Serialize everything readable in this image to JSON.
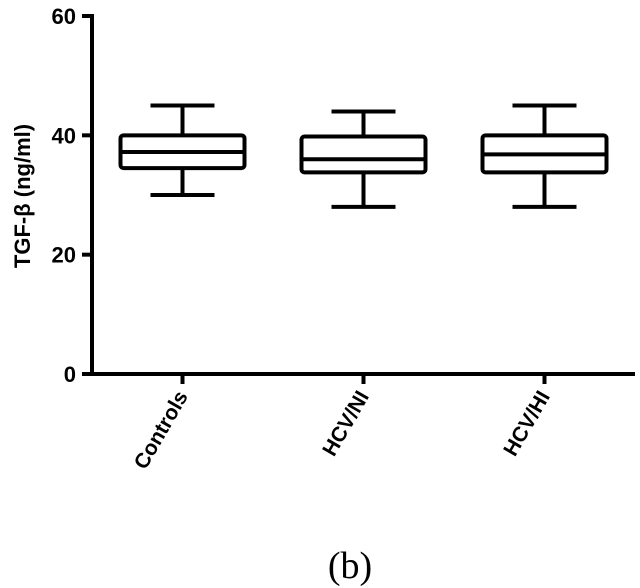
{
  "chart_data": {
    "type": "box",
    "title": "",
    "xlabel": "",
    "ylabel": "TGF-β (ng/ml)",
    "ylim": [
      0,
      60
    ],
    "yticks": [
      0,
      20,
      40,
      60
    ],
    "grid": false,
    "categories": [
      "Controls",
      "HCV/NI",
      "HCV/HI"
    ],
    "boxes": [
      {
        "category": "Controls",
        "min": 30,
        "q1": 34.5,
        "median": 37.2,
        "q3": 40,
        "max": 45
      },
      {
        "category": "HCV/NI",
        "min": 28,
        "q1": 33.8,
        "median": 36,
        "q3": 39.8,
        "max": 44
      },
      {
        "category": "HCV/HI",
        "min": 28,
        "q1": 33.8,
        "median": 36.8,
        "q3": 40,
        "max": 45
      }
    ]
  },
  "caption": "(b)"
}
